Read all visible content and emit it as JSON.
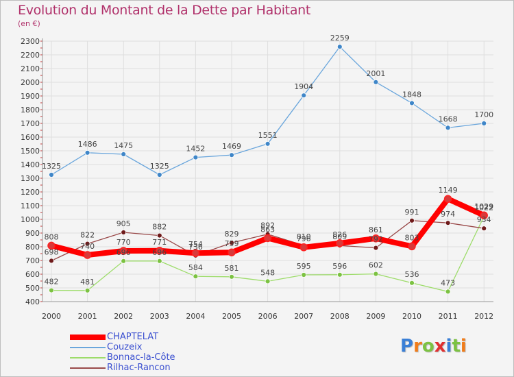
{
  "header": {
    "title": "Evolution du Montant de la Dette par Habitant",
    "subtitle": "(en €)"
  },
  "logo": {
    "text": "Proxiti",
    "letter_colors": [
      "#3a7fd6",
      "#f07c1a",
      "#7cc242",
      "#e03030",
      "#3a7fd6",
      "#7cc242",
      "#f07c1a"
    ]
  },
  "chart_data": {
    "type": "line",
    "title": "Evolution du Montant de la Dette par Habitant",
    "subtitle": "(en €)",
    "xlabel": "",
    "ylabel": "",
    "ylim": [
      400,
      2300
    ],
    "y_ticks": [
      400,
      500,
      600,
      700,
      800,
      900,
      1000,
      1100,
      1200,
      1300,
      1400,
      1500,
      1600,
      1700,
      1800,
      1900,
      2000,
      2100,
      2200,
      2300
    ],
    "grid": true,
    "legend_position": "bottom-left",
    "categories": [
      "2000",
      "2001",
      "2002",
      "2003",
      "2004",
      "2005",
      "2006",
      "2007",
      "2008",
      "2009",
      "2010",
      "2011",
      "2012"
    ],
    "series": [
      {
        "name": "CHAPTELAT",
        "color": "#ff0000",
        "marker_color": "#d83a3a",
        "thick": true,
        "values": [
          808,
          740,
          770,
          771,
          754,
          759,
          863,
          796,
          826,
          861,
          803,
          1149,
          1029
        ]
      },
      {
        "name": "Couzeix",
        "color": "#6aa6dc",
        "marker_color": "#3f86c8",
        "thick": false,
        "values": [
          1325,
          1486,
          1475,
          1325,
          1452,
          1469,
          1551,
          1904,
          2259,
          2001,
          1848,
          1668,
          1700
        ]
      },
      {
        "name": "Bonnac-la-Côte",
        "color": "#9ddc6a",
        "marker_color": "#7cc242",
        "thick": false,
        "values": [
          482,
          481,
          696,
          696,
          584,
          581,
          548,
          595,
          596,
          602,
          536,
          473,
          1022
        ]
      },
      {
        "name": "Rilhac-Rancon",
        "color": "#9a4a4a",
        "marker_color": "#6e1a1a",
        "thick": false,
        "values": [
          698,
          822,
          905,
          882,
          736,
          829,
          892,
          810,
          809,
          792,
          991,
          974,
          934
        ]
      }
    ],
    "labels": {
      "CHAPTELAT": [
        "808",
        "740",
        "770",
        "771",
        "754",
        "759",
        "863",
        "796",
        "826",
        "861",
        "803",
        "1149",
        "1029"
      ],
      "Couzeix": [
        "1325",
        "1486",
        "1475",
        "1325",
        "1452",
        "1469",
        "1551",
        "1904",
        "2259",
        "2001",
        "1848",
        "1668",
        "1700"
      ],
      "Bonnac-la-Côte": [
        "482",
        "481",
        "696",
        "696",
        "584",
        "581",
        "548",
        "595",
        "596",
        "602",
        "536",
        "473",
        "1022"
      ],
      "Rilhac-Rancon": [
        "698",
        "822",
        "905",
        "882",
        "736",
        "829",
        "892",
        "810",
        "809",
        "792",
        "991",
        "974",
        "934"
      ]
    }
  }
}
